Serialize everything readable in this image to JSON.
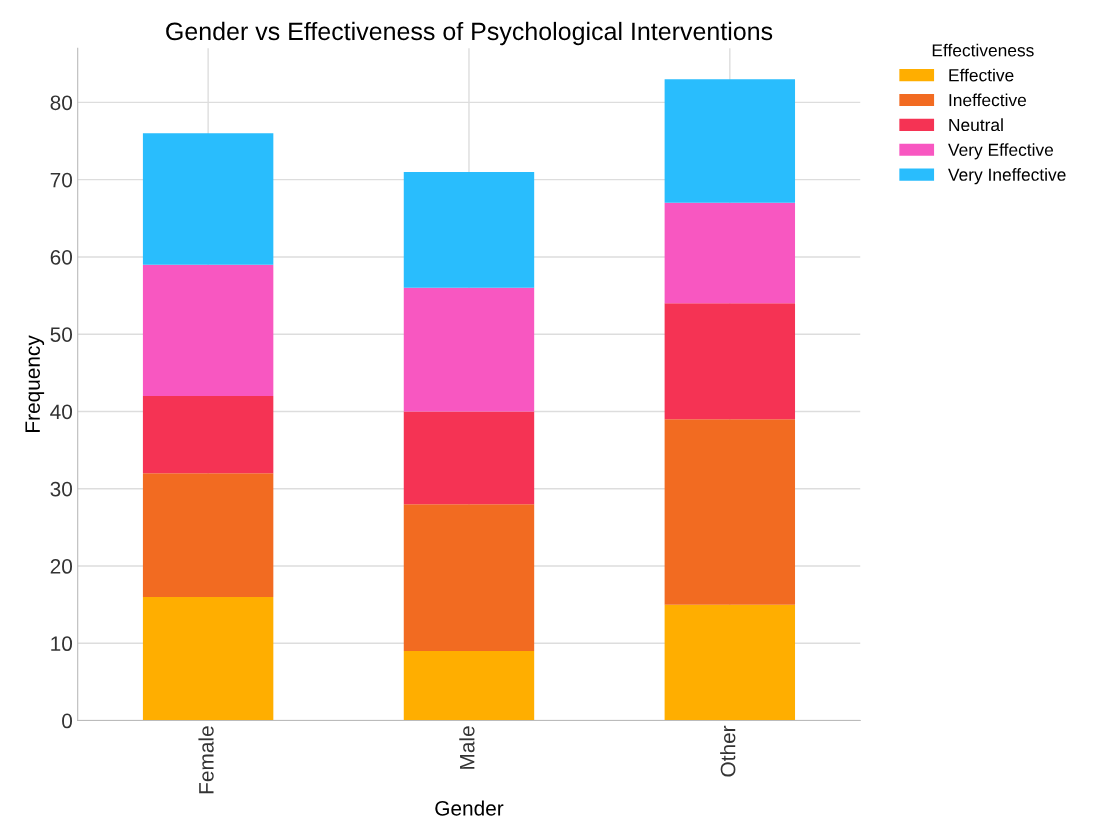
{
  "chart_data": {
    "type": "bar",
    "title": "Gender vs Effectiveness of Psychological Interventions",
    "xlabel": "Gender",
    "ylabel": "Frequency",
    "legend_title": "Effectiveness",
    "categories": [
      "Female",
      "Male",
      "Other"
    ],
    "stacked": true,
    "series": [
      {
        "name": "Effective",
        "color": "#ffae00",
        "values": [
          16,
          9,
          15
        ]
      },
      {
        "name": "Ineffective",
        "color": "#f26b21",
        "values": [
          16,
          19,
          24
        ]
      },
      {
        "name": "Neutral",
        "color": "#f53354",
        "values": [
          10,
          12,
          15
        ]
      },
      {
        "name": "Very Effective",
        "color": "#f857c1",
        "values": [
          17,
          16,
          13
        ]
      },
      {
        "name": "Very Ineffective",
        "color": "#29bdfd",
        "values": [
          17,
          15,
          16
        ]
      }
    ],
    "ylim": [
      0,
      87
    ],
    "yticks": [
      0,
      10,
      20,
      30,
      40,
      50,
      60,
      70,
      80
    ],
    "grid": true,
    "legend": "top right"
  }
}
